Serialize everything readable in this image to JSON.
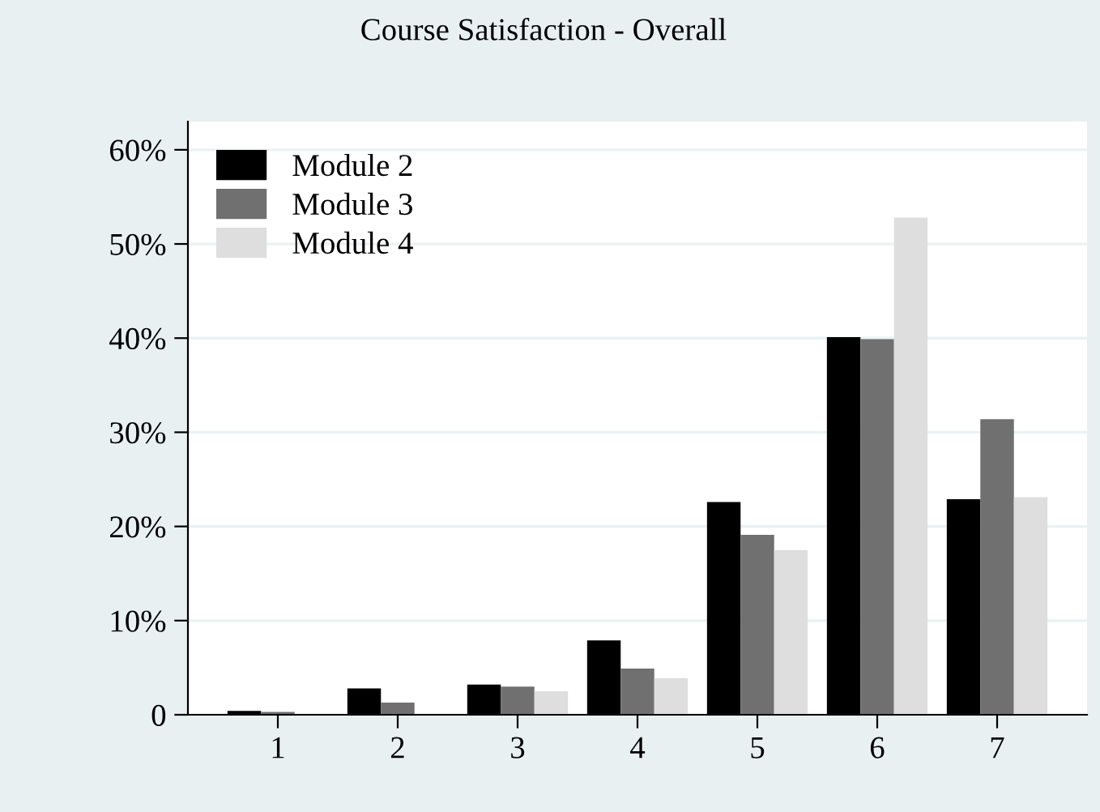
{
  "chart_data": {
    "type": "bar",
    "title": "Course Satisfaction - Overall",
    "categories": [
      "1",
      "2",
      "3",
      "4",
      "5",
      "6",
      "7"
    ],
    "series": [
      {
        "name": "Module 2",
        "color": "#000000",
        "values": [
          0.4,
          2.8,
          3.2,
          7.9,
          22.6,
          40.1,
          22.9
        ]
      },
      {
        "name": "Module 3",
        "color": "#707070",
        "values": [
          0.3,
          1.3,
          3.0,
          4.9,
          19.1,
          39.9,
          31.4
        ]
      },
      {
        "name": "Module 4",
        "color": "#dedede",
        "values": [
          0,
          0,
          2.5,
          3.9,
          17.5,
          52.8,
          23.1
        ]
      }
    ],
    "ylim": [
      0,
      63
    ],
    "yticks": [
      0,
      {
        "value": 10,
        "label": "10%"
      },
      {
        "value": 20,
        "label": "20%"
      },
      {
        "value": 30,
        "label": "30%"
      },
      {
        "value": 40,
        "label": "40%"
      },
      {
        "value": 50,
        "label": "50%"
      },
      {
        "value": 60,
        "label": "60%"
      }
    ],
    "grid": "y",
    "legend": "top left"
  }
}
